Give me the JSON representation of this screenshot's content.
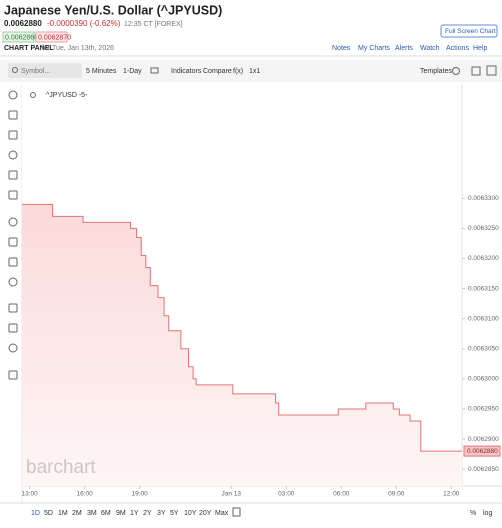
{
  "header": {
    "title": "Japanese Yen/U.S. Dollar (^JPYUSD)",
    "price": "0.0062880",
    "change": "-0.0000390 (-0.62%)",
    "time": "12:35 CT [FOREX]",
    "bid": "0.0062860",
    "ask": "0.0062870",
    "panel": "CHART PANEL",
    "date": "for Tue, Jan 13th, 2026",
    "full_screen": "Full Screen Chart",
    "links": [
      "Notes",
      "My Charts",
      "Alerts",
      "Watch",
      "Actions",
      "Help"
    ]
  },
  "toolbar": {
    "symbol_placeholder": "Symbol...",
    "items": [
      "5 Minutes",
      "1-Day",
      "Indicators",
      "Compare",
      "f(x)",
      "1x1"
    ],
    "templates": "Templates"
  },
  "watermark": "barchart",
  "ranges": [
    "1D",
    "5D",
    "1M",
    "2M",
    "3M",
    "6M",
    "9M",
    "1Y",
    "2Y",
    "3Y",
    "5Y",
    "10Y",
    "20Y",
    "Max"
  ],
  "scale_options": [
    "%",
    "log"
  ],
  "chart_data": {
    "type": "step",
    "legend": "^JPYUSD -5-",
    "color": "#e57373",
    "x": [
      "12:35",
      "14:15",
      "15:55",
      "18:30",
      "18:50",
      "19:05",
      "19:20",
      "19:35",
      "20:00",
      "20:20",
      "20:35",
      "21:15",
      "21:40",
      "21:55",
      "22:05",
      "00:05",
      "02:25",
      "02:35",
      "05:50",
      "07:20",
      "08:50",
      "09:10",
      "09:45",
      "10:20",
      "12:35"
    ],
    "values": [
      0.006329,
      0.006327,
      0.006326,
      0.006325,
      0.0063235,
      0.0063205,
      0.0063185,
      0.0063155,
      0.0063135,
      0.0063105,
      0.006308,
      0.006305,
      0.006302,
      0.0063,
      0.006299,
      0.0062975,
      0.006296,
      0.006294,
      0.006295,
      0.006296,
      0.006295,
      0.006294,
      0.006293,
      0.006288,
      0.006288
    ],
    "xlim": [
      "12:35",
      "12:35"
    ],
    "xticks": [
      {
        "value": "13:00",
        "label": "13:00"
      },
      {
        "value": "16:00",
        "label": "16:00"
      },
      {
        "value": "19:00",
        "label": "19:00"
      },
      {
        "value": "00:00",
        "label": "Jan 13"
      },
      {
        "value": "03:00",
        "label": "03:00"
      },
      {
        "value": "06:00",
        "label": "06:00"
      },
      {
        "value": "09:00",
        "label": "09:00"
      },
      {
        "value": "12:00",
        "label": "12:00"
      }
    ],
    "ylim": [
      0.0062822,
      0.006349
    ],
    "yticks": [
      {
        "value": 0.00633,
        "label": "0.0063300"
      },
      {
        "value": 0.006325,
        "label": "0.0063250"
      },
      {
        "value": 0.00632,
        "label": "0.0063200"
      },
      {
        "value": 0.006315,
        "label": "0.0063150"
      },
      {
        "value": 0.00631,
        "label": "0.0063100"
      },
      {
        "value": 0.006305,
        "label": "0.0063050"
      },
      {
        "value": 0.0063,
        "label": "0.0063000"
      },
      {
        "value": 0.006295,
        "label": "0.0062950"
      },
      {
        "value": 0.00629,
        "label": "0.0062900"
      },
      {
        "value": 0.006285,
        "label": "0.0062850"
      }
    ]
  }
}
